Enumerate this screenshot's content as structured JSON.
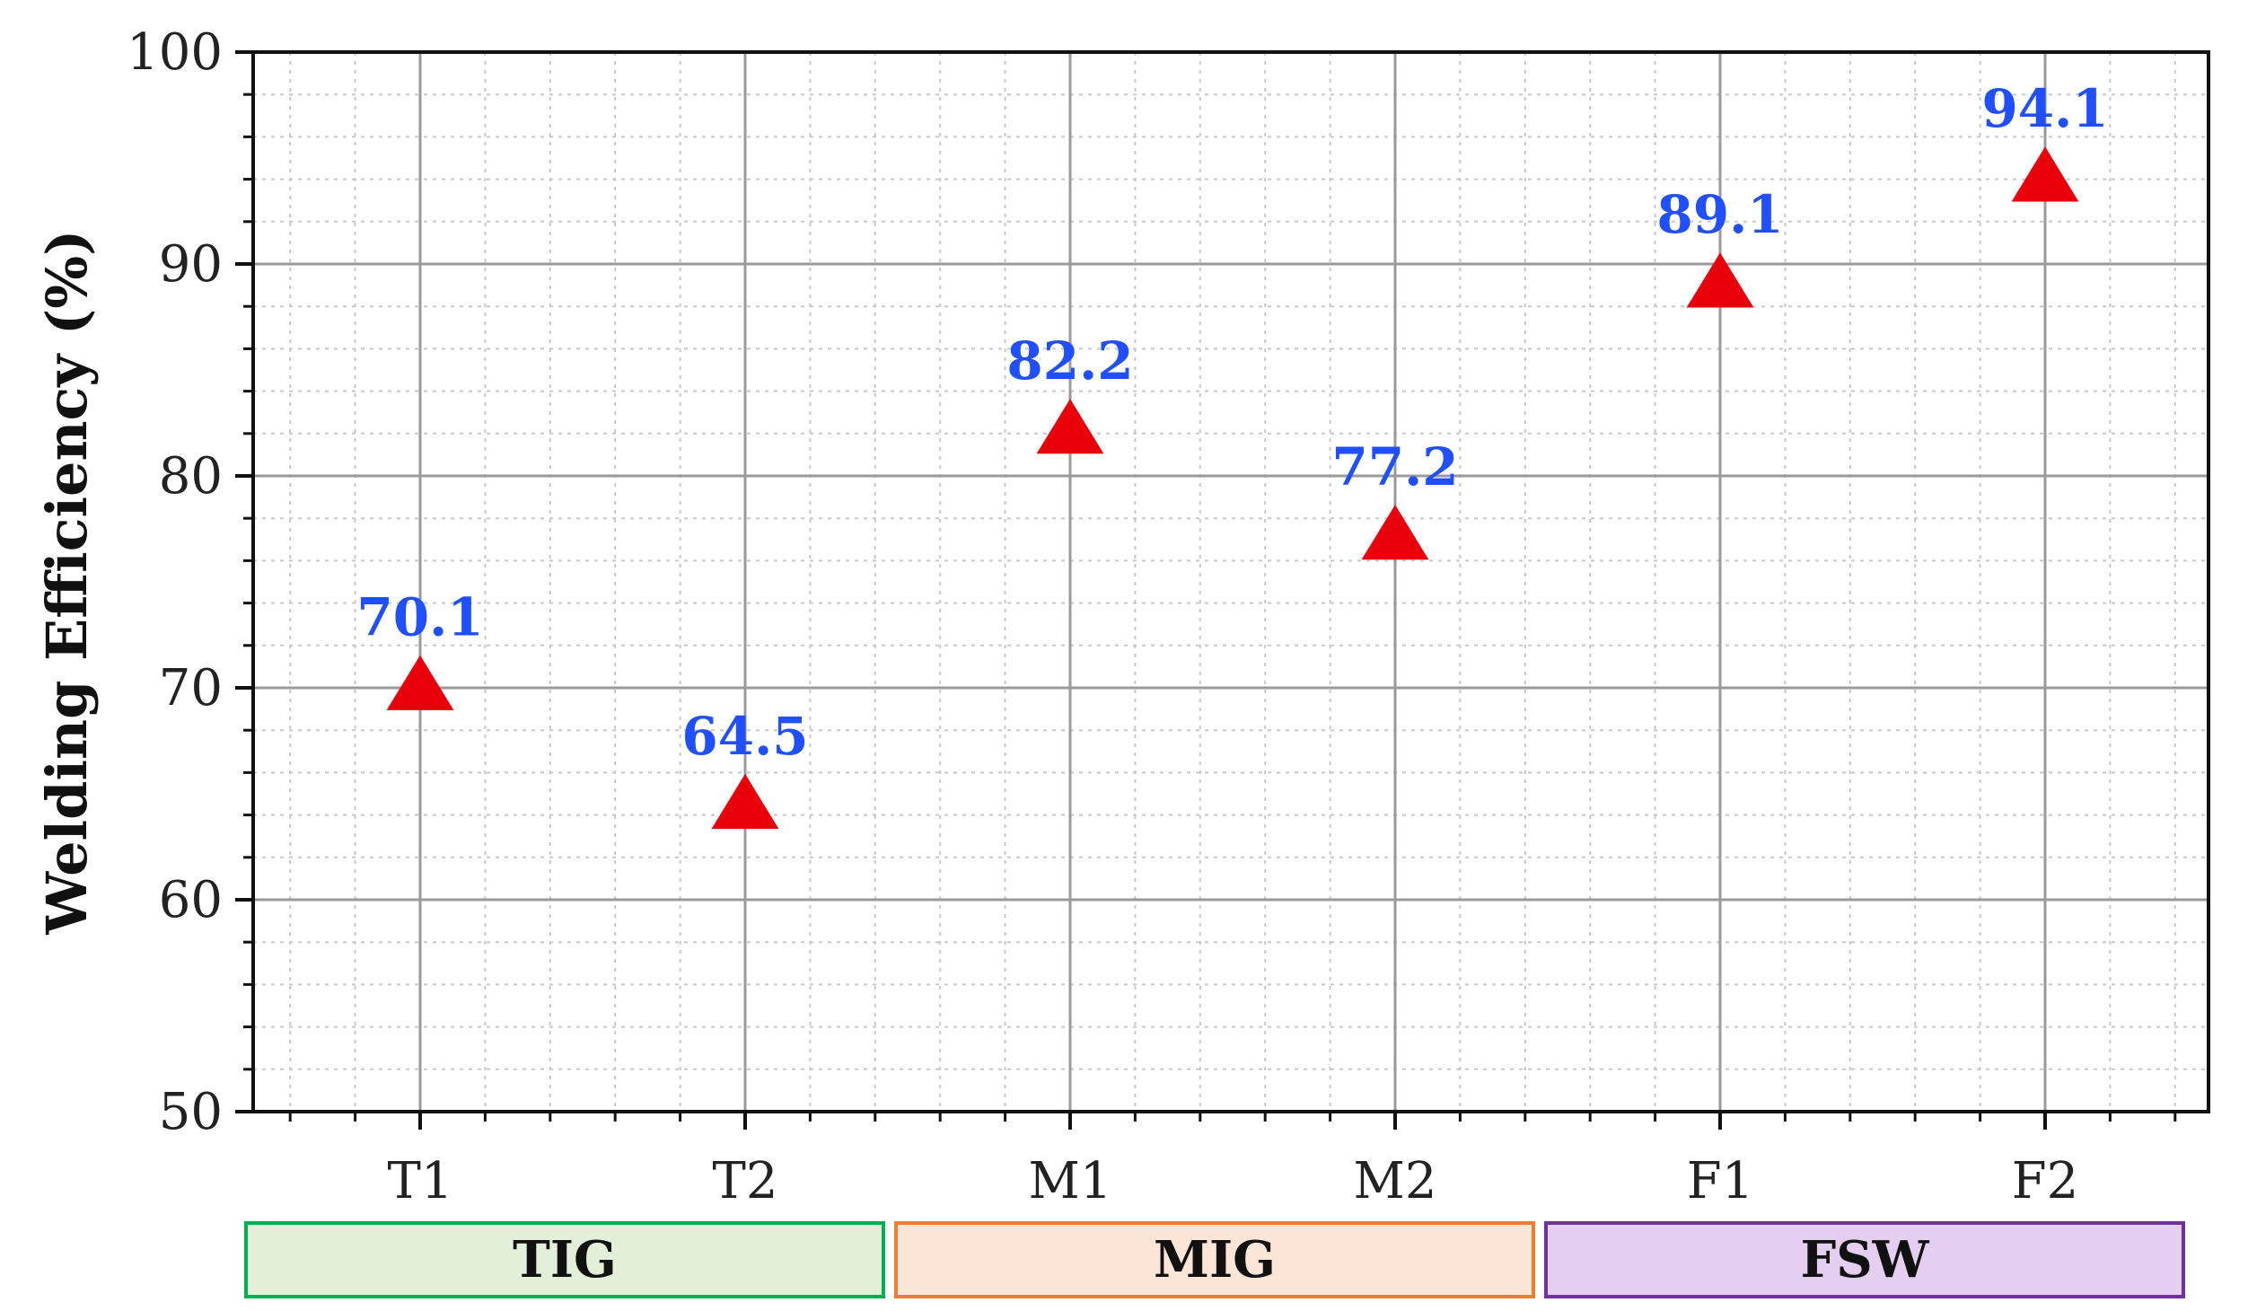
{
  "chart_data": {
    "type": "scatter",
    "title": "",
    "xlabel": "",
    "ylabel": "Welding Efficiency (%)",
    "categories": [
      "T1",
      "T2",
      "M1",
      "M2",
      "F1",
      "F2"
    ],
    "values": [
      70.1,
      64.5,
      82.2,
      77.2,
      89.1,
      94.1
    ],
    "data_labels": [
      "70.1",
      "64.5",
      "82.2",
      "77.2",
      "89.1",
      "94.1"
    ],
    "ylim": [
      50,
      100
    ],
    "yticks": [
      "50",
      "60",
      "70",
      "80",
      "90",
      "100"
    ],
    "grid": true,
    "marker": "triangle",
    "marker_color": "#e8000b",
    "label_color": "#1f4fff",
    "groups": [
      {
        "label": "TIG",
        "categories": [
          "T1",
          "T2"
        ],
        "fill": "#e2f0d9",
        "stroke": "#00b050"
      },
      {
        "label": "MIG",
        "categories": [
          "M1",
          "M2"
        ],
        "fill": "#fbe5d6",
        "stroke": "#ed7d31"
      },
      {
        "label": "FSW",
        "categories": [
          "F1",
          "F2"
        ],
        "fill": "#e4cff0",
        "stroke": "#7030a0"
      }
    ]
  }
}
